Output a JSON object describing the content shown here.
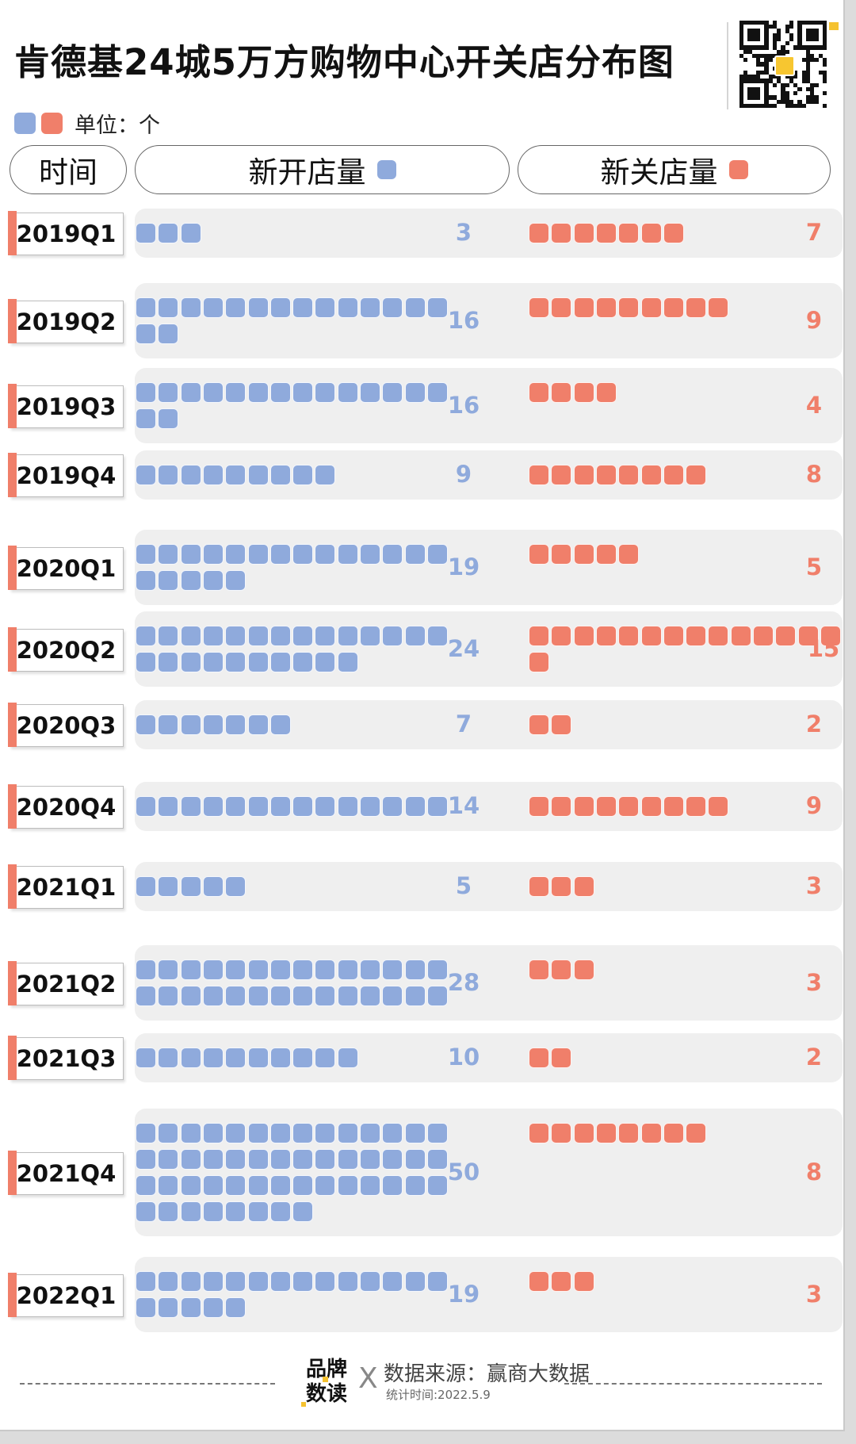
{
  "title": "肯德基24城5万方购物中心开关店分布图",
  "legend": {
    "unit_label": "单位：个"
  },
  "columns": {
    "time": "时间",
    "open": "新开店量",
    "close": "新关店量"
  },
  "colors": {
    "open": "#8faadc",
    "close": "#f07f6a",
    "accent": "#f5c230"
  },
  "footer": {
    "brand_line1": "品牌",
    "brand_line2": "数读",
    "separator": "X",
    "source": "数据来源：赢商大数据",
    "stat_time": "统计时间:2022.5.9"
  },
  "qr_icon": "qr-code-icon",
  "chart_data": {
    "type": "bar",
    "categories": [
      "2019Q1",
      "2019Q2",
      "2019Q3",
      "2019Q4",
      "2020Q1",
      "2020Q2",
      "2020Q3",
      "2020Q4",
      "2021Q1",
      "2021Q2",
      "2021Q3",
      "2021Q4",
      "2022Q1"
    ],
    "series": [
      {
        "name": "新开店量",
        "values": [
          3,
          16,
          16,
          9,
          19,
          24,
          7,
          14,
          5,
          28,
          10,
          50,
          19
        ]
      },
      {
        "name": "新关店量",
        "values": [
          7,
          9,
          4,
          8,
          5,
          15,
          2,
          9,
          3,
          3,
          2,
          8,
          3
        ]
      }
    ]
  }
}
